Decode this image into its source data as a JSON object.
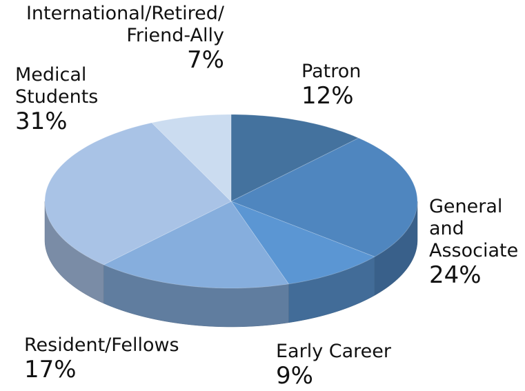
{
  "chart_data": {
    "type": "pie",
    "categories": [
      "Patron",
      "General\nand\nAssociate",
      "Early Career",
      "Resident/Fellows",
      "Medical\nStudents",
      "International/Retired/\nFriend-Ally"
    ],
    "values": [
      12,
      24,
      9,
      17,
      31,
      7
    ],
    "value_labels": [
      "12%",
      "24%",
      "9%",
      "17%",
      "31%",
      "7%"
    ],
    "colors": [
      "#44729e",
      "#4f86bf",
      "#5b96d3",
      "#86aedd",
      "#a9c3e6",
      "#cbdcf0"
    ]
  }
}
